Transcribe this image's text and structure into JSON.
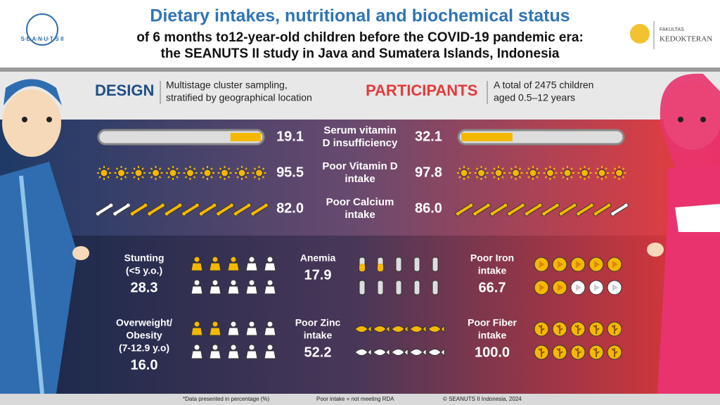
{
  "header": {
    "title": "Dietary intakes, nutritional and biochemical status",
    "subtitle": [
      "of 6 months to12-year-old children before the COVID-19 pandemic era:",
      "the SEANUTS II study in Java and Sumatera  Islands, Indonesia"
    ],
    "logo_left": "S·E·A·N·U·T·S II",
    "logo_right": [
      "FAKULTAS",
      "KEDOKTERAN"
    ]
  },
  "design": {
    "label": "DESIGN",
    "text": [
      "Multistage cluster sampling,",
      "stratified by geographical location"
    ]
  },
  "participants": {
    "label": "PARTICIPANTS",
    "text": [
      "A total of 2475 children",
      "aged 0.5–12 years"
    ]
  },
  "comparisons": [
    {
      "label": [
        "Serum vitamin",
        "D insufficiency"
      ],
      "left": "19.1",
      "right": "32.1",
      "icon": "bar"
    },
    {
      "label": [
        "Poor Vitamin D",
        "intake"
      ],
      "left": "95.5",
      "right": "97.8",
      "icon": "sun"
    },
    {
      "label": [
        "Poor Calcium",
        "intake"
      ],
      "left": "82.0",
      "right": "86.0",
      "icon": "bone"
    }
  ],
  "indicators": [
    {
      "label": [
        "Stunting",
        "(<5 y.o.)"
      ],
      "value": "28.3",
      "icon": "person"
    },
    {
      "label": [
        "Anemia"
      ],
      "value": "17.9",
      "icon": "tube"
    },
    {
      "label": [
        "Poor Iron",
        "intake"
      ],
      "value": "66.7",
      "icon": "meat"
    },
    {
      "label": [
        "Overweight/",
        "Obesity",
        "(7-12.9 y.o)"
      ],
      "value": "16.0",
      "icon": "person"
    },
    {
      "label": [
        "Poor Zinc",
        "intake"
      ],
      "value": "52.2",
      "icon": "fish"
    },
    {
      "label": [
        "Poor Fiber",
        "intake"
      ],
      "value": "100.0",
      "icon": "grain"
    }
  ],
  "footer": [
    "*Data presented in percentage (%)",
    "Poor intake = not meeting RDA",
    "© SEANUTS II Indonesia, 2024"
  ]
}
